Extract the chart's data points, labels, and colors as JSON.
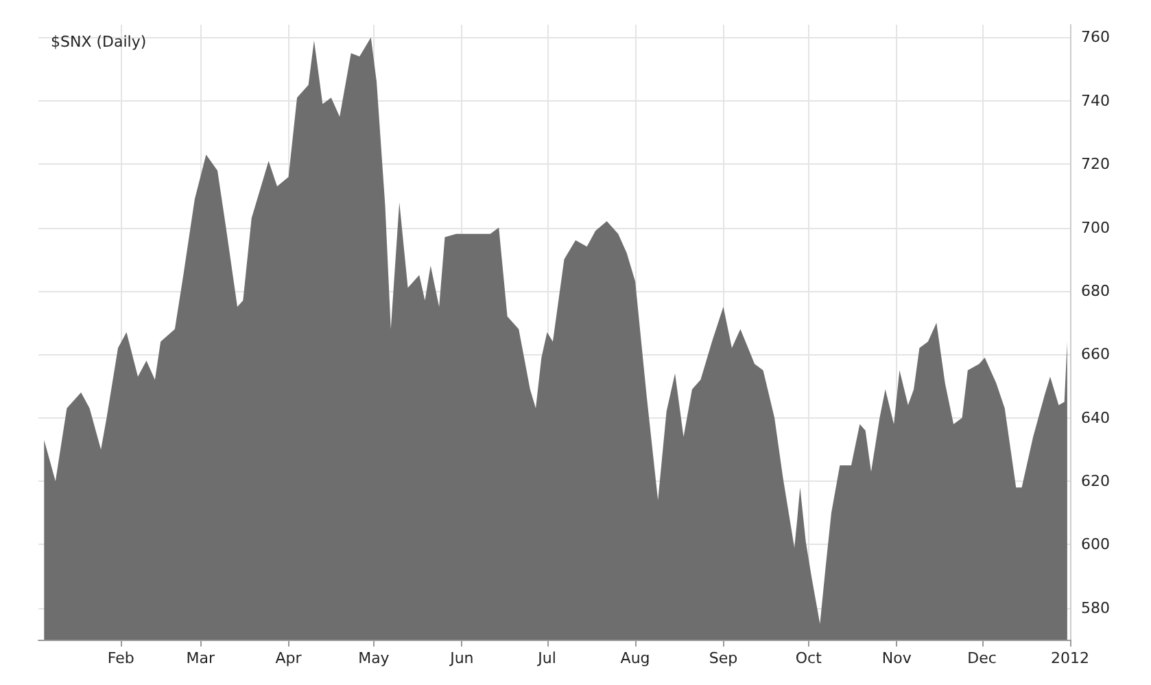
{
  "chart_data": {
    "type": "area",
    "title": "$SNX (Daily)",
    "color": "#6e6e6e",
    "x": [
      "2011-01-05",
      "2011-01-09",
      "2011-01-13",
      "2011-01-18",
      "2011-01-21",
      "2011-01-25",
      "2011-01-27",
      "2011-01-31",
      "2011-02-03",
      "2011-02-07",
      "2011-02-10",
      "2011-02-13",
      "2011-02-15",
      "2011-02-20",
      "2011-02-23",
      "2011-02-27",
      "2011-03-03",
      "2011-03-07",
      "2011-03-10",
      "2011-03-14",
      "2011-03-16",
      "2011-03-19",
      "2011-03-25",
      "2011-03-28",
      "2011-04-01",
      "2011-04-04",
      "2011-04-08",
      "2011-04-10",
      "2011-04-13",
      "2011-04-16",
      "2011-04-19",
      "2011-04-23",
      "2011-04-26",
      "2011-04-30",
      "2011-05-02",
      "2011-05-05",
      "2011-05-07",
      "2011-05-10",
      "2011-05-13",
      "2011-05-17",
      "2011-05-19",
      "2011-05-21",
      "2011-05-24",
      "2011-05-26",
      "2011-05-30",
      "2011-06-11",
      "2011-06-14",
      "2011-06-17",
      "2011-06-21",
      "2011-06-25",
      "2011-06-27",
      "2011-06-29",
      "2011-07-01",
      "2011-07-03",
      "2011-07-07",
      "2011-07-11",
      "2011-07-15",
      "2011-07-18",
      "2011-07-22",
      "2011-07-26",
      "2011-07-29",
      "2011-08-01",
      "2011-08-05",
      "2011-08-09",
      "2011-08-12",
      "2011-08-15",
      "2011-08-18",
      "2011-08-21",
      "2011-08-24",
      "2011-08-28",
      "2011-09-01",
      "2011-09-04",
      "2011-09-07",
      "2011-09-12",
      "2011-09-15",
      "2011-09-19",
      "2011-09-22",
      "2011-09-26",
      "2011-09-27",
      "2011-09-28",
      "2011-09-30",
      "2011-10-02",
      "2011-10-04",
      "2011-10-05",
      "2011-10-07",
      "2011-10-09",
      "2011-10-12",
      "2011-10-16",
      "2011-10-19",
      "2011-10-21",
      "2011-10-23",
      "2011-10-26",
      "2011-10-28",
      "2011-10-31",
      "2011-11-02",
      "2011-11-05",
      "2011-11-07",
      "2011-11-09",
      "2011-11-12",
      "2011-11-15",
      "2011-11-18",
      "2011-11-21",
      "2011-11-24",
      "2011-11-26",
      "2011-11-30",
      "2011-12-02",
      "2011-12-06",
      "2011-12-09",
      "2011-12-13",
      "2011-12-15",
      "2011-12-19",
      "2011-12-23",
      "2011-12-25",
      "2011-12-28",
      "2011-12-30",
      "2011-12-31"
    ],
    "values": [
      633,
      620,
      643,
      648,
      643,
      630,
      640,
      662,
      667,
      653,
      658,
      652,
      664,
      668,
      685,
      709,
      723,
      718,
      700,
      675,
      677,
      703,
      721,
      713,
      716,
      741,
      745,
      759,
      739,
      741,
      735,
      755,
      754,
      760,
      746,
      707,
      668,
      708,
      681,
      685,
      677,
      688,
      675,
      697,
      698,
      698,
      700,
      672,
      668,
      649,
      643,
      659,
      667,
      664,
      690,
      696,
      694,
      699,
      702,
      698,
      692,
      683,
      647,
      614,
      642,
      654,
      634,
      649,
      652,
      664,
      675,
      662,
      668,
      657,
      655,
      640,
      621,
      599,
      608,
      618,
      601,
      590,
      580,
      575,
      593,
      610,
      625,
      625,
      638,
      636,
      623,
      640,
      649,
      638,
      655,
      644,
      649,
      662,
      664,
      670,
      651,
      638,
      640,
      655,
      657,
      659,
      651,
      643,
      618,
      618,
      634,
      647,
      653,
      644,
      645,
      664
    ],
    "xlim": [
      "2011-01-03",
      "2012-01-01"
    ],
    "xticks": [
      {
        "value": "2011-02-01",
        "label": "Feb"
      },
      {
        "value": "2011-03-01",
        "label": "Mar"
      },
      {
        "value": "2011-04-01",
        "label": "Apr"
      },
      {
        "value": "2011-05-01",
        "label": "May"
      },
      {
        "value": "2011-06-01",
        "label": "Jun"
      },
      {
        "value": "2011-07-01",
        "label": "Jul"
      },
      {
        "value": "2011-08-01",
        "label": "Aug"
      },
      {
        "value": "2011-09-01",
        "label": "Sep"
      },
      {
        "value": "2011-10-01",
        "label": "Oct"
      },
      {
        "value": "2011-11-01",
        "label": "Nov"
      },
      {
        "value": "2011-12-01",
        "label": "Dec"
      },
      {
        "value": "2012-01-01",
        "label": "2012"
      }
    ],
    "ylim": [
      570,
      764
    ],
    "yticks": [
      580,
      600,
      620,
      640,
      660,
      680,
      700,
      720,
      740,
      760
    ],
    "grid": true
  }
}
